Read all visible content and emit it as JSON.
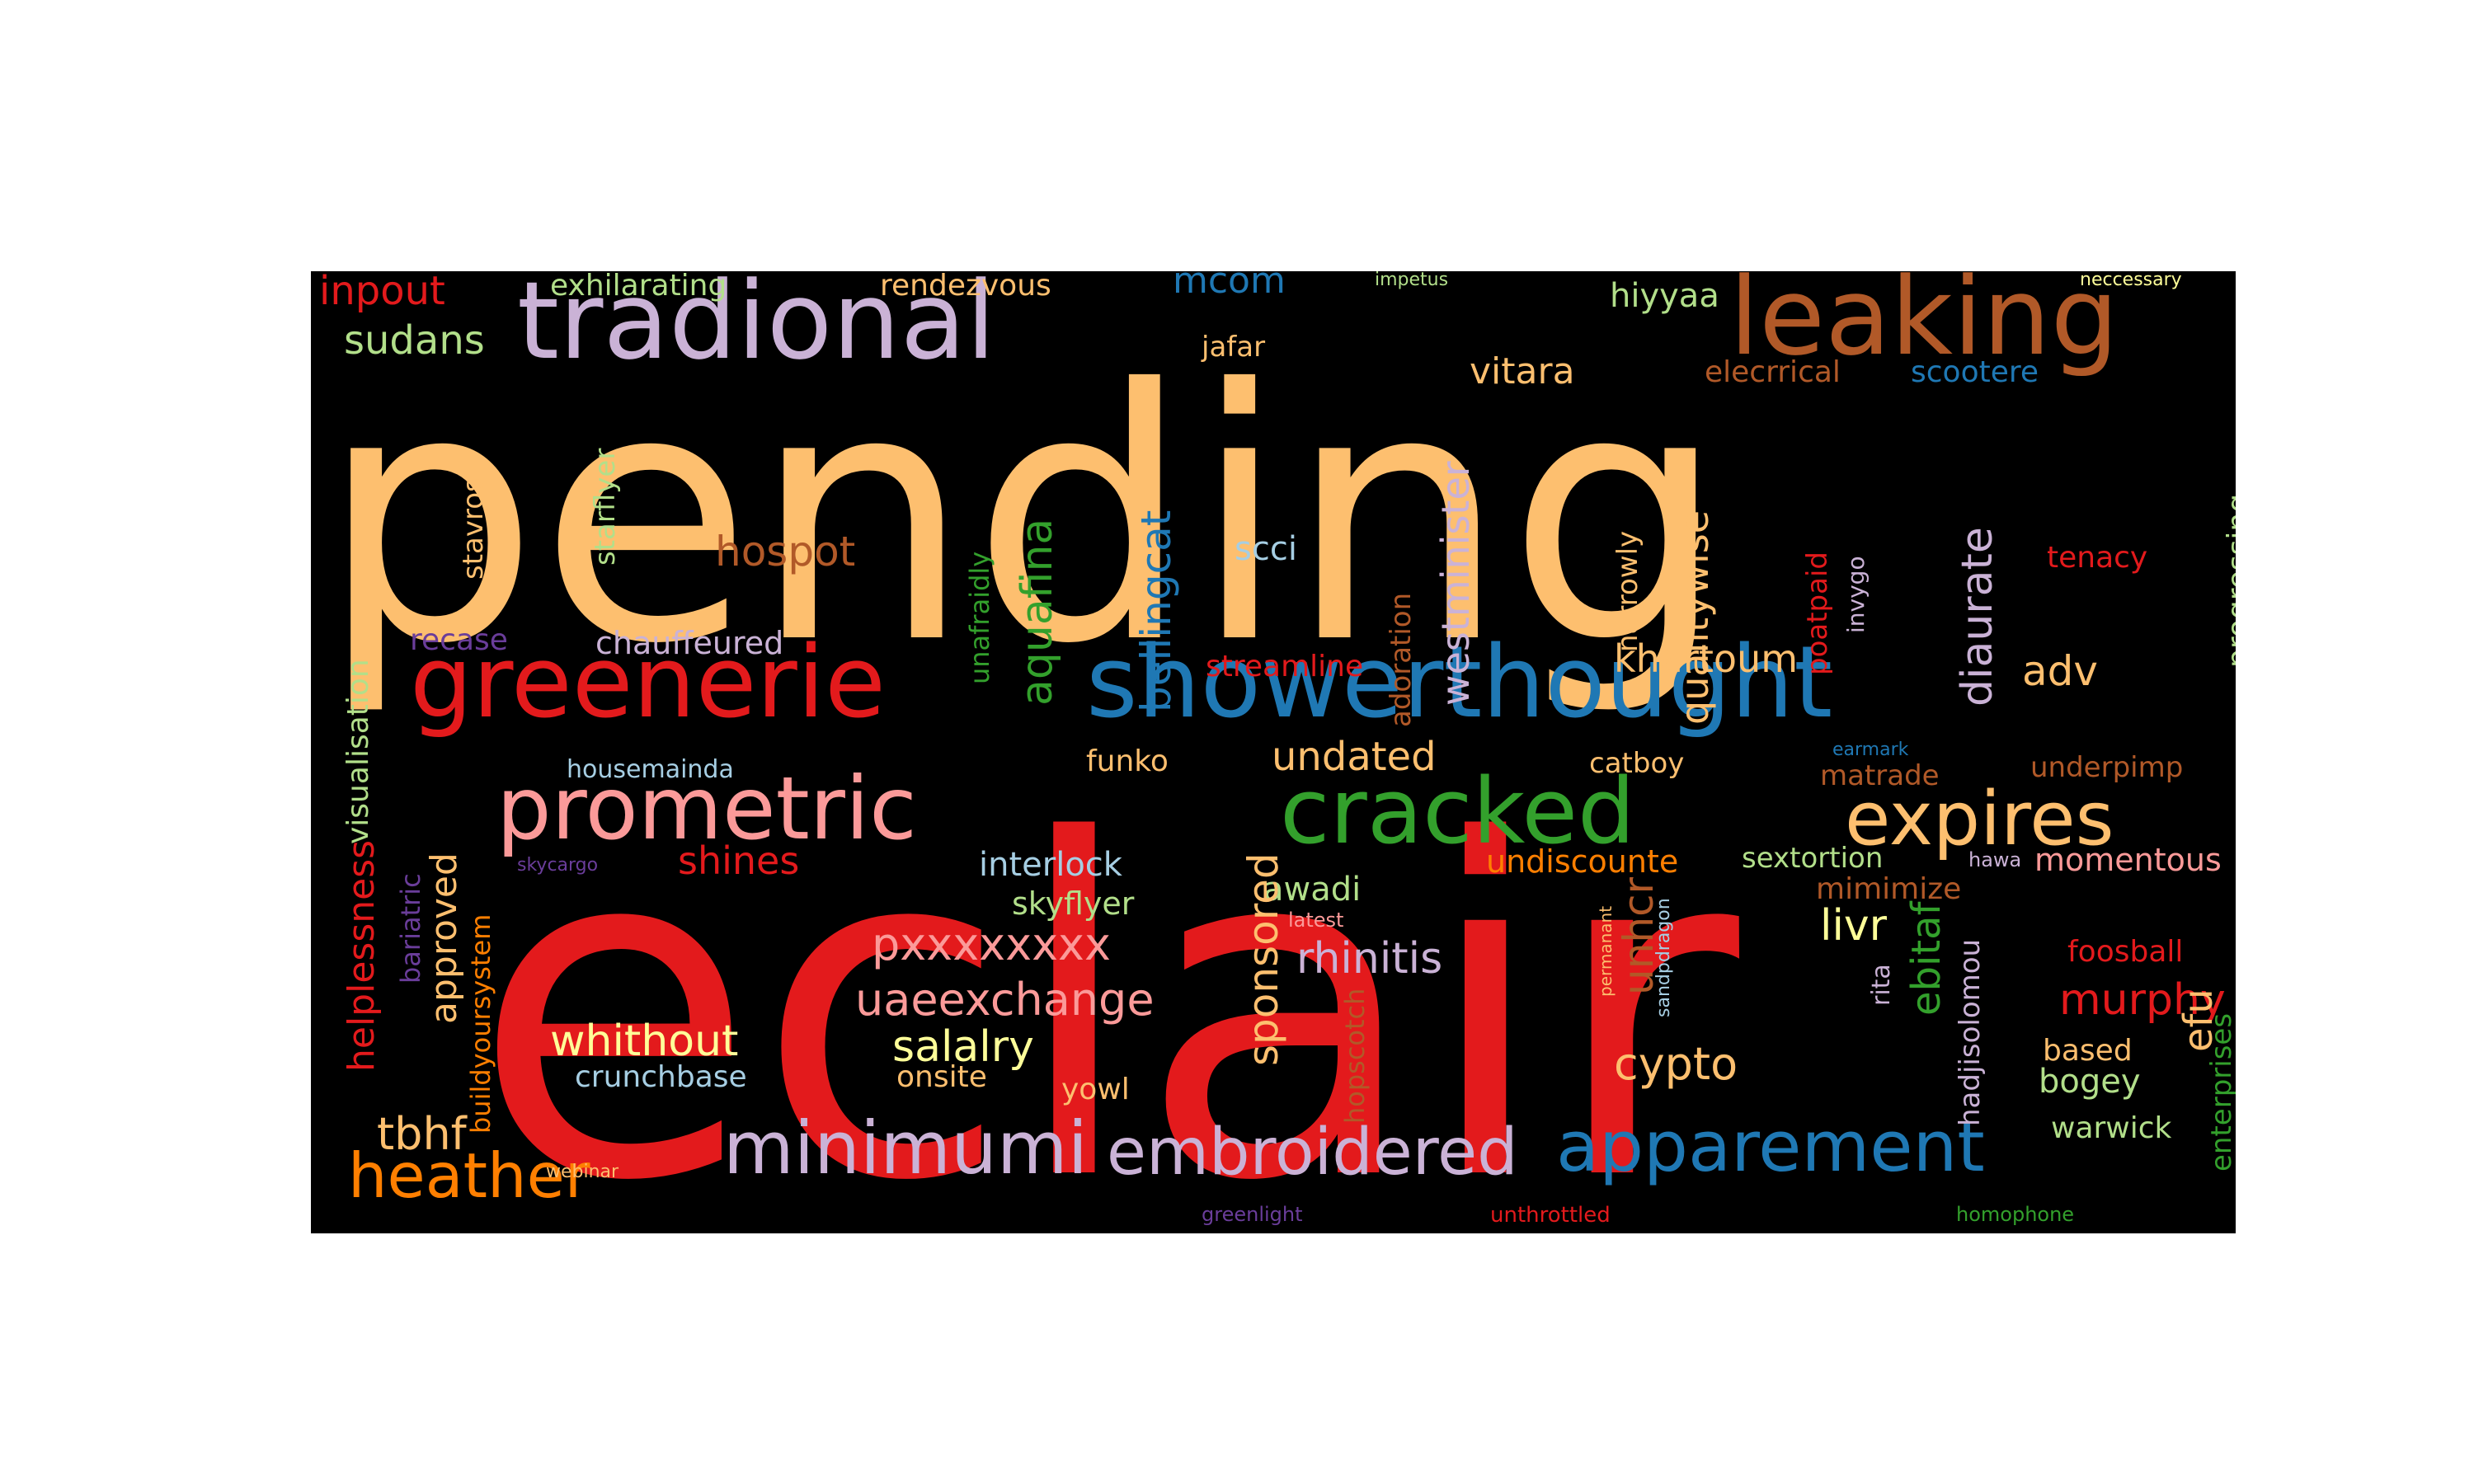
{
  "colors": {
    "background": "#000000",
    "page": "#ffffff",
    "red": "#e31a1c",
    "orange_light": "#fdbf6f",
    "brown": "#b15928",
    "lavender": "#cab2d6",
    "blue": "#1f78b4",
    "light_blue": "#a6cee3",
    "green": "#33a02c",
    "light_green": "#b2df8a",
    "pink": "#fb9a99",
    "orange": "#ff7f00",
    "purple": "#6a3d9a",
    "yellow": "#ffff99"
  },
  "words": [
    "pending",
    "eclair",
    "tradional",
    "leaking",
    "greenerie",
    "showerthought",
    "prometric",
    "cracked",
    "expires",
    "minimumi",
    "embroidered",
    "apparement",
    "heather",
    "inpout",
    "exhilarating",
    "rendezvous",
    "mcom",
    "impetus",
    "neccessary",
    "sudans",
    "jafar",
    "hiyyaa",
    "vitara",
    "elecrrical",
    "scootere",
    "hospot",
    "scci",
    "westminister",
    "qualitywise",
    "diaurate",
    "aquafina",
    "bellingcat",
    "starflyer",
    "stavros",
    "visualisation",
    "unafraidly",
    "adoration",
    "narrowly",
    "poatpaid",
    "invygo",
    "tenacy",
    "progressing",
    "recase",
    "chauffeured",
    "streamline",
    "khartoum",
    "adv",
    "housemainda",
    "funko",
    "undated",
    "catboy",
    "earmark",
    "matrade",
    "underpimp",
    "helplessness",
    "approved",
    "shines",
    "interlock",
    "undiscounte",
    "sextortion",
    "hawa",
    "momentous",
    "skycargo",
    "bariatric",
    "buildyoursystem",
    "skyflyer",
    "awadi",
    "mimimize",
    "latest",
    "pxxxxxxxx",
    "sponsored",
    "rhinitis",
    "unhcr",
    "livr",
    "foosball",
    "permanant",
    "sandpdragon",
    "uaeexchange",
    "murphy",
    "whithout",
    "salalry",
    "crunchbase",
    "onsite",
    "cypto",
    "ebitaf",
    "rita",
    "based",
    "efu",
    "hadjisolomou",
    "yowl",
    "bogey",
    "hopscotch",
    "tbhf",
    "warwick",
    "webinar",
    "greenlight",
    "unthrottled",
    "homophone",
    "enterprises"
  ]
}
